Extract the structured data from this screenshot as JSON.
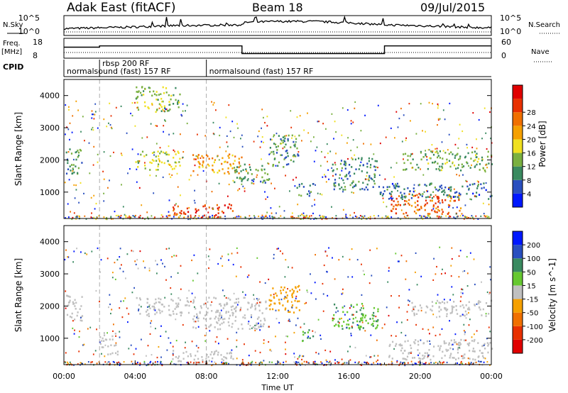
{
  "header": {
    "station": "Adak East (fitACF)",
    "beam": "Beam 18",
    "date": "09/Jul/2015"
  },
  "labels": {
    "nsky": "N.Sky",
    "nsearch": "N.Search",
    "freq": "Freq.",
    "mhz": "[MHz]",
    "nave": "Nave",
    "cpid": "CPID"
  },
  "chart_data": [
    {
      "type": "line",
      "panel": "noise",
      "series": [
        {
          "name": "N.Sky",
          "style": "solid"
        },
        {
          "name": "N.Search",
          "style": "dotted"
        }
      ],
      "left_ticks": [
        "10^5",
        "10^0"
      ],
      "right_ticks": [
        "10^5",
        "10^0"
      ],
      "x_hours": [
        0,
        2,
        4,
        6,
        8,
        10,
        10.2,
        12,
        14,
        16,
        18,
        20,
        22,
        24
      ],
      "nsky_level": [
        1.1,
        1.3,
        1.5,
        1.8,
        1.9,
        2.0,
        2.6,
        2.8,
        2.8,
        2.5,
        2.0,
        1.8,
        1.5,
        1.3
      ]
    },
    {
      "type": "line",
      "panel": "frequency",
      "series": [
        {
          "name": "Freq.",
          "style": "solid"
        },
        {
          "name": "Nave",
          "style": "dotted"
        }
      ],
      "left_ticks": [
        "18",
        "8"
      ],
      "right_ticks": [
        "60",
        "0"
      ],
      "freq_steps": [
        {
          "from": 0,
          "to": 2,
          "mhz": 15.5
        },
        {
          "from": 2,
          "to": 10,
          "mhz": 16.5
        },
        {
          "from": 10,
          "to": 18,
          "mhz": 10.5
        },
        {
          "from": 18,
          "to": 24,
          "mhz": 16.5
        }
      ]
    },
    {
      "type": "table",
      "panel": "cpid",
      "segments": [
        {
          "start": 0,
          "end": 2,
          "label": "normalsound (fast) 157 RF"
        },
        {
          "start": 2,
          "end": 8,
          "label": "rbsp 200 RF"
        },
        {
          "start": 8,
          "end": 24,
          "label": "normalsound (fast) 157 RF"
        }
      ]
    },
    {
      "type": "heatmap",
      "panel": "power",
      "ylabel": "Slant Range [km]",
      "yticks": [
        1000,
        2000,
        3000,
        4000
      ],
      "ylim": [
        180,
        4500
      ],
      "colorbar_label": "Power [dB]",
      "colorbar_ticks": [
        "4",
        "8",
        "12",
        "16",
        "20",
        "24",
        "28"
      ],
      "colorbar_colors": [
        "#0018ff",
        "#2a4fbf",
        "#3a8a60",
        "#7ab040",
        "#f0e020",
        "#f5a000",
        "#f07000",
        "#e83000",
        "#e00000"
      ],
      "regions": [
        {
          "t0": 5.9,
          "t1": 9.5,
          "r0": 250,
          "r1": 650,
          "level": 26
        },
        {
          "t0": 18.2,
          "t1": 22.3,
          "r0": 350,
          "r1": 1000,
          "level": 24
        },
        {
          "t0": 4.0,
          "t1": 6.5,
          "r0": 1700,
          "r1": 2300,
          "level": 14
        },
        {
          "t0": 7.2,
          "t1": 10.0,
          "r0": 1600,
          "r1": 2200,
          "level": 20
        },
        {
          "t0": 9.5,
          "t1": 11.8,
          "r0": 1300,
          "r1": 1900,
          "level": 10
        },
        {
          "t0": 11.5,
          "t1": 13.2,
          "r0": 1800,
          "r1": 2800,
          "level": 9
        },
        {
          "t0": 15.0,
          "t1": 17.6,
          "r0": 1100,
          "r1": 2100,
          "level": 8
        },
        {
          "t0": 17.6,
          "t1": 24.0,
          "r0": 800,
          "r1": 1300,
          "level": 7
        },
        {
          "t0": 19.0,
          "t1": 24.0,
          "r0": 1700,
          "r1": 2300,
          "level": 11
        },
        {
          "t0": 4.0,
          "t1": 6.5,
          "r0": 3500,
          "r1": 4300,
          "level": 13
        },
        {
          "t0": 13.0,
          "t1": 14.0,
          "r0": 900,
          "r1": 1300,
          "level": 8
        },
        {
          "t0": 0.1,
          "t1": 1.0,
          "r0": 1500,
          "r1": 2400,
          "level": 10
        }
      ]
    },
    {
      "type": "heatmap",
      "panel": "velocity",
      "ylabel": "Slant Range [km]",
      "yticks": [
        1000,
        2000,
        3000,
        4000
      ],
      "ylim": [
        180,
        4500
      ],
      "xlabel": "Time UT",
      "xticks": [
        "00:00",
        "04:00",
        "08:00",
        "12:00",
        "16:00",
        "20:00",
        "00:00"
      ],
      "xlim": [
        0,
        24
      ],
      "colorbar_label": "Velocity [m s^-1]",
      "colorbar_ticks": [
        "200",
        "100",
        "50",
        "15",
        "-15",
        "-50",
        "-100",
        "-200"
      ],
      "colorbar_colors": [
        "#0018ff",
        "#2a4fbf",
        "#3a8a60",
        "#66c830",
        "#c0c0c0",
        "#f5a000",
        "#f07000",
        "#e83000",
        "#e00000"
      ],
      "regions": [
        {
          "t0": 5.9,
          "t1": 9.5,
          "r0": 250,
          "r1": 650,
          "level": 0
        },
        {
          "t0": 18.2,
          "t1": 24.0,
          "r0": 350,
          "r1": 1000,
          "level": 0
        },
        {
          "t0": 4.0,
          "t1": 7.0,
          "r0": 1700,
          "r1": 2300,
          "level": 0
        },
        {
          "t0": 7.2,
          "t1": 11.5,
          "r0": 1300,
          "r1": 2300,
          "level": 0
        },
        {
          "t0": 11.5,
          "t1": 13.2,
          "r0": 1800,
          "r1": 2700,
          "level": -30
        },
        {
          "t0": 13.3,
          "t1": 14.0,
          "r0": 900,
          "r1": 1300,
          "level": 30
        },
        {
          "t0": 15.0,
          "t1": 17.6,
          "r0": 1300,
          "r1": 2100,
          "level": 25
        },
        {
          "t0": 19.5,
          "t1": 24.0,
          "r0": 1700,
          "r1": 2200,
          "level": 0
        },
        {
          "t0": 2.0,
          "t1": 3.0,
          "r0": 500,
          "r1": 1200,
          "level": 0
        },
        {
          "t0": 0.1,
          "t1": 1.0,
          "r0": 1500,
          "r1": 2400,
          "level": 0
        }
      ]
    }
  ]
}
